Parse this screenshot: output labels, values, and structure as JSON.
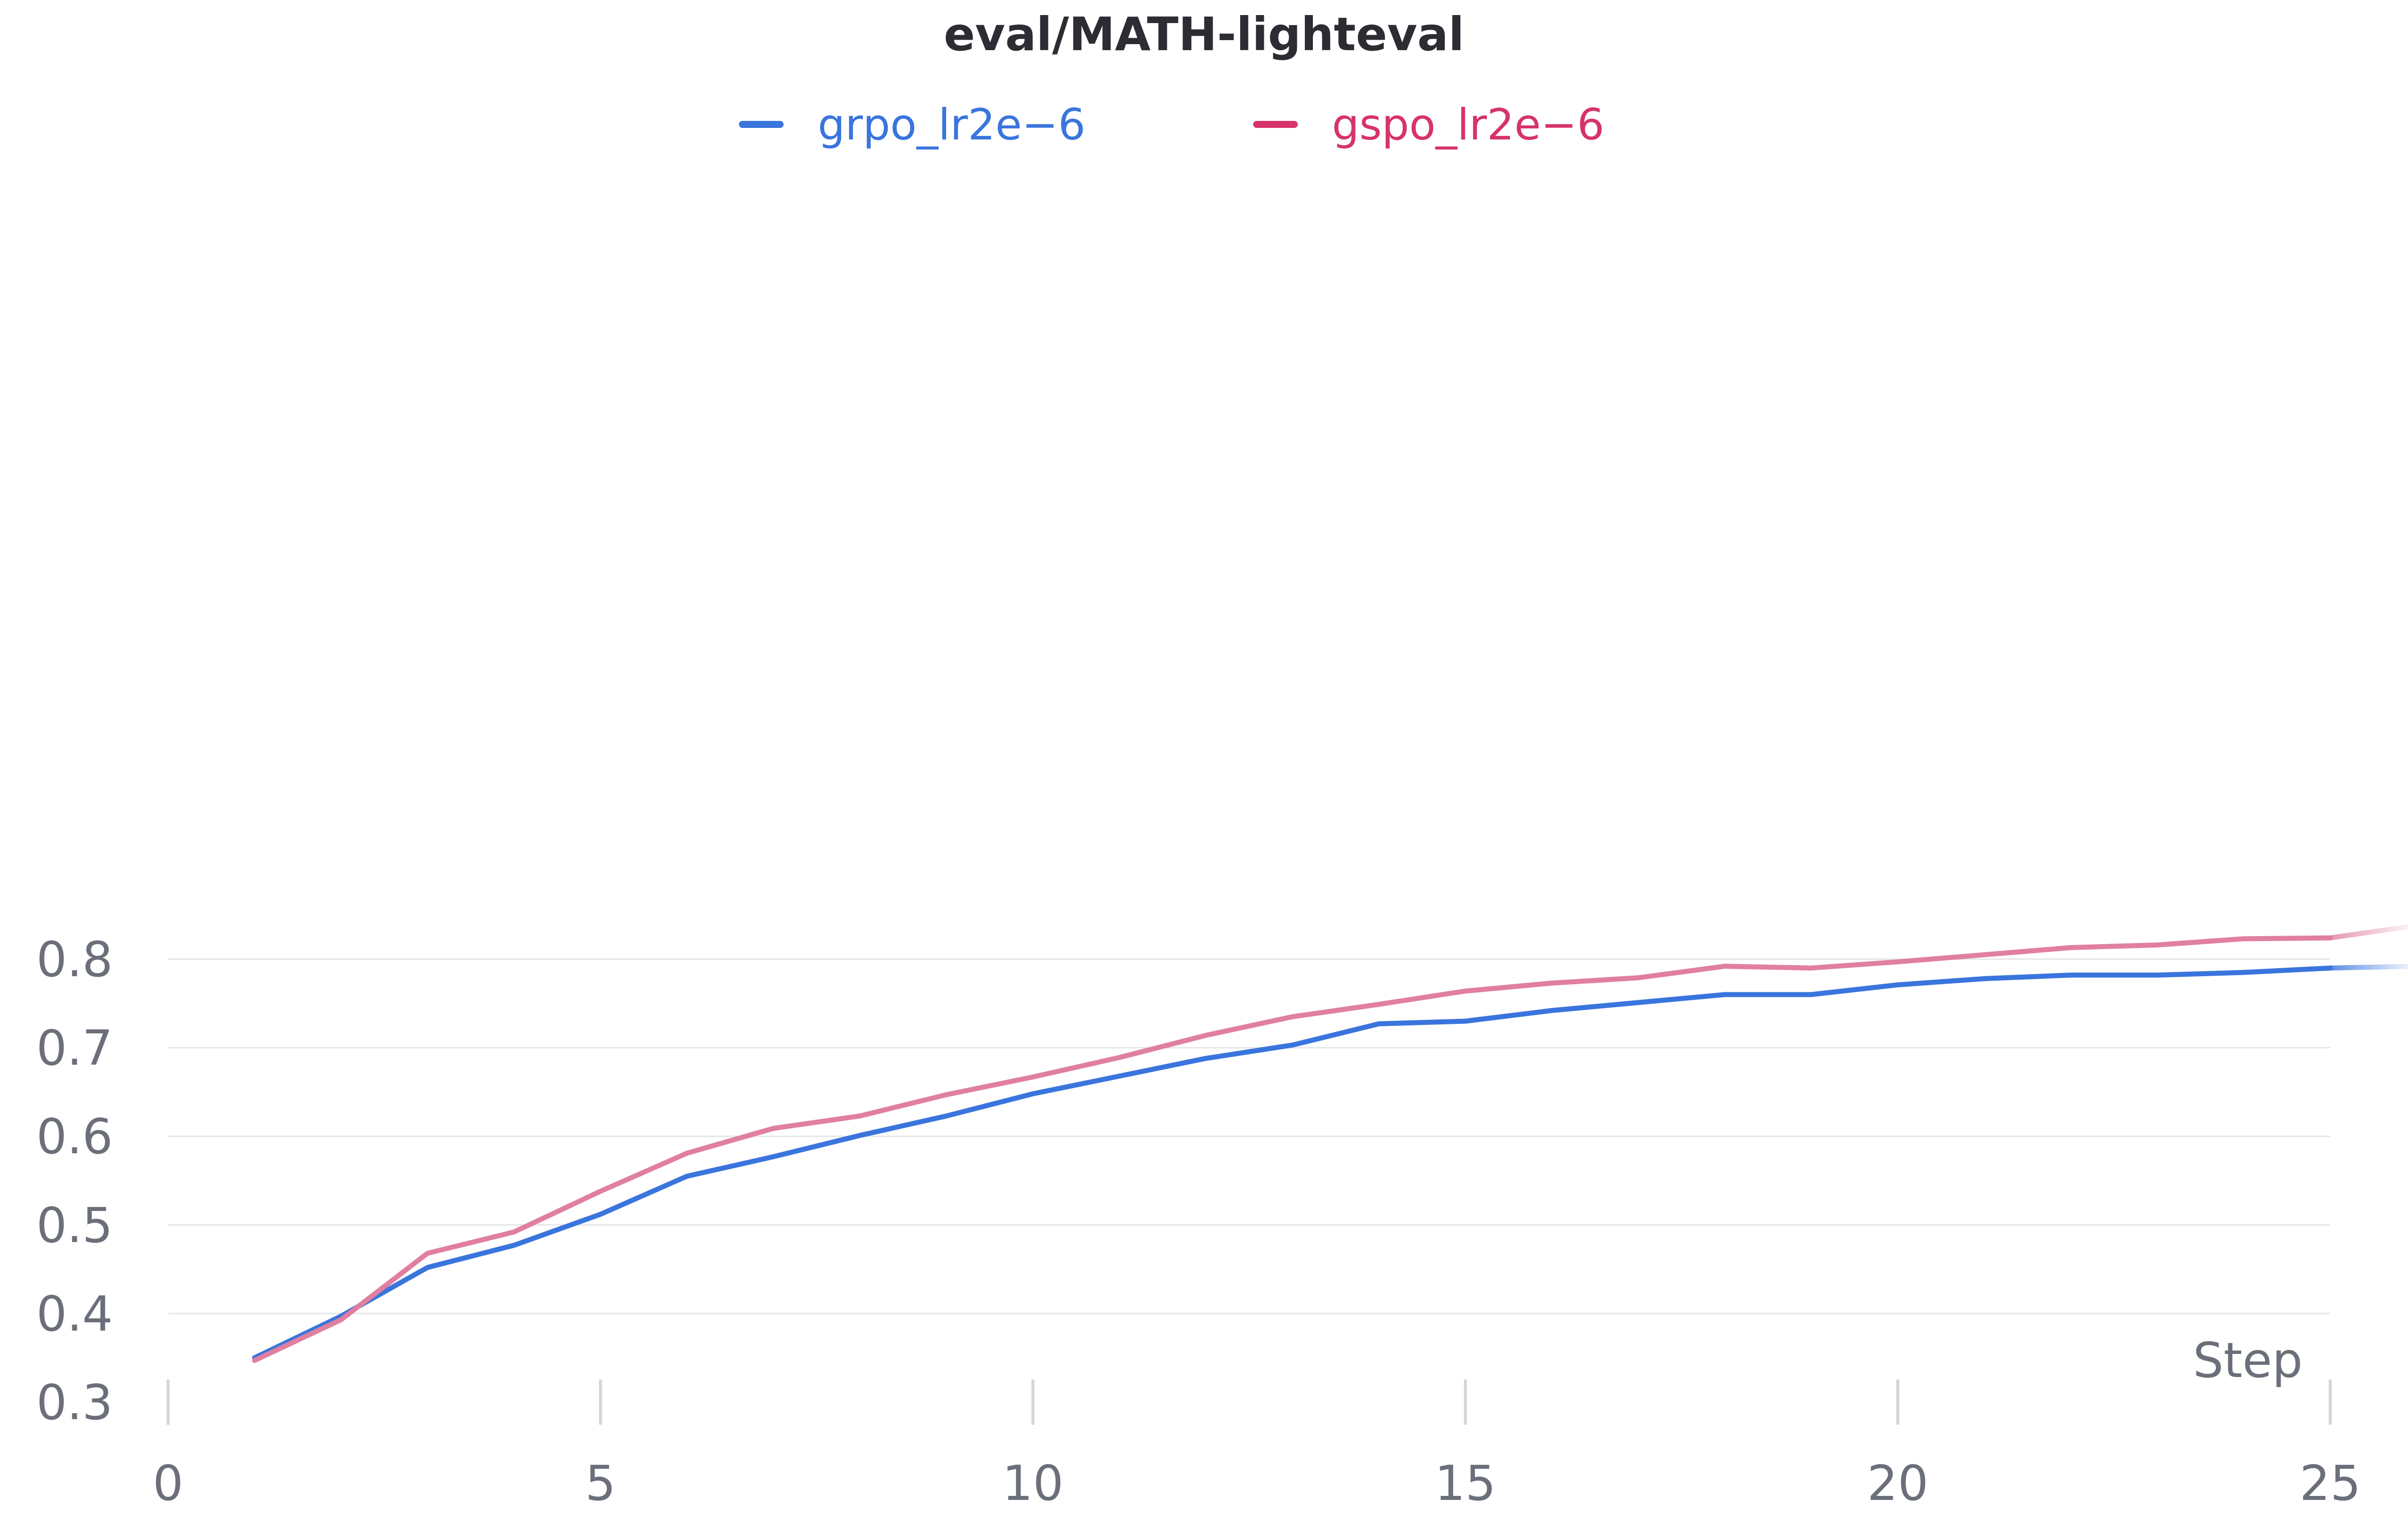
{
  "chart_data": {
    "type": "line",
    "title": "eval/MATH-lighteval",
    "xlabel": "Step",
    "ylabel": "",
    "xlim": [
      0,
      25
    ],
    "ylim": [
      0.3,
      0.85
    ],
    "x_ticks": [
      "0",
      "5",
      "10",
      "15",
      "20",
      "25"
    ],
    "y_ticks": [
      "0.3",
      "0.4",
      "0.5",
      "0.6",
      "0.7",
      "0.8"
    ],
    "grid": true,
    "legend_position": "top",
    "series": [
      {
        "name": "grpo_lr2e−6",
        "color": "#3a75dd",
        "x": [
          1,
          2,
          3,
          4,
          5,
          6,
          7,
          8,
          9,
          10,
          11,
          12,
          13,
          14,
          15,
          16,
          17,
          18,
          19,
          20,
          21,
          22,
          23,
          24,
          25,
          26
        ],
        "y": [
          0.35,
          0.397,
          0.452,
          0.477,
          0.512,
          0.555,
          0.577,
          0.601,
          0.623,
          0.648,
          0.668,
          0.688,
          0.703,
          0.727,
          0.73,
          0.742,
          0.751,
          0.76,
          0.76,
          0.771,
          0.778,
          0.782,
          0.782,
          0.785,
          0.79,
          0.792
        ]
      },
      {
        "name": "gspo_lr2e−6",
        "color": "#e07fa0",
        "legend_color": "#d6336c",
        "x": [
          1,
          2,
          3,
          4,
          5,
          6,
          7,
          8,
          9,
          10,
          11,
          12,
          13,
          14,
          15,
          16,
          17,
          18,
          19,
          20,
          21,
          22,
          23,
          24,
          25,
          26
        ],
        "y": [
          0.347,
          0.393,
          0.468,
          0.492,
          0.538,
          0.581,
          0.609,
          0.623,
          0.647,
          0.667,
          0.689,
          0.714,
          0.735,
          0.749,
          0.764,
          0.773,
          0.779,
          0.792,
          0.79,
          0.797,
          0.805,
          0.813,
          0.816,
          0.823,
          0.824,
          0.838
        ]
      }
    ]
  }
}
